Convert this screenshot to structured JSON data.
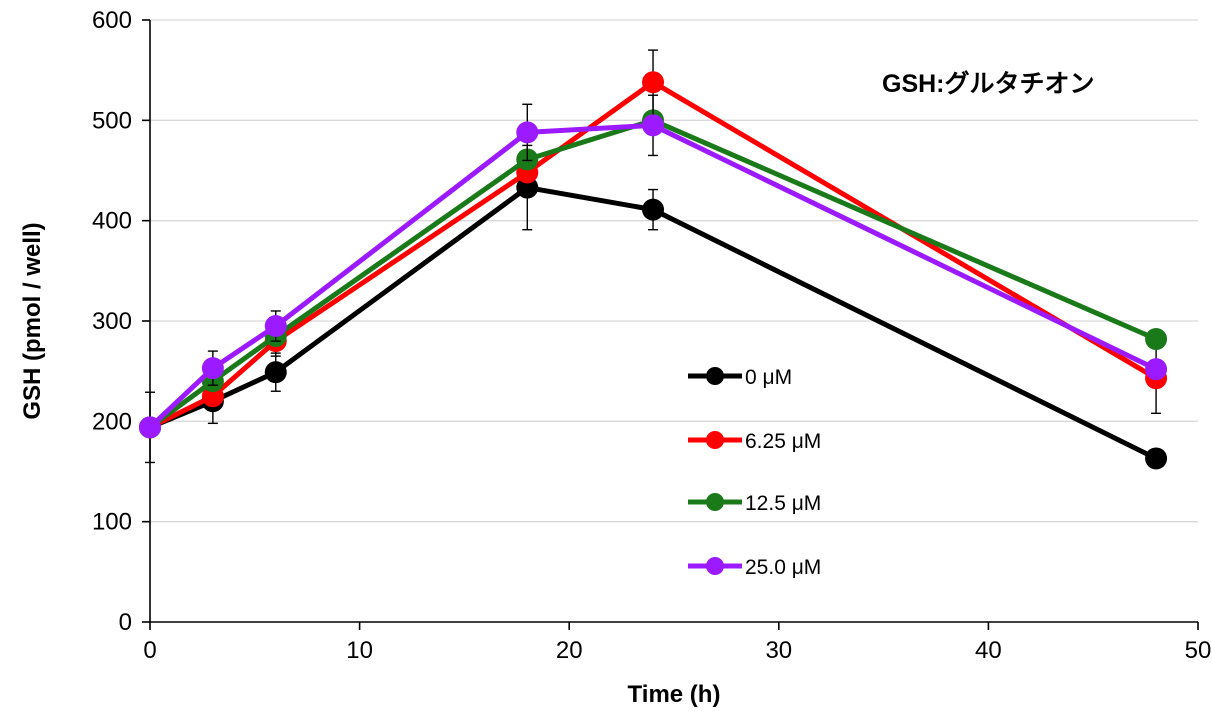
{
  "chart_data": {
    "type": "line",
    "title": "",
    "annotation": "GSH:グルタチオン",
    "xlabel": "Time (h)",
    "ylabel": "GSH (pmol / well)",
    "xlim": [
      0,
      50
    ],
    "ylim": [
      0,
      600
    ],
    "xticks": [
      0,
      10,
      20,
      30,
      40,
      50
    ],
    "yticks": [
      0,
      100,
      200,
      300,
      400,
      500,
      600
    ],
    "grid": "horizontal",
    "legend_position": "center-right",
    "x": [
      0,
      3,
      6,
      18,
      24,
      48
    ],
    "series": [
      {
        "name": "0 μM",
        "color": "#000000",
        "values": [
          194,
          220,
          249,
          433,
          411,
          163
        ],
        "error": [
          35,
          22,
          19,
          42,
          20,
          0
        ]
      },
      {
        "name": "6.25 μM",
        "color": "#ff0000",
        "values": [
          194,
          225,
          280,
          448,
          538,
          243
        ],
        "error": [
          0,
          0,
          15,
          0,
          32,
          35
        ]
      },
      {
        "name": "12.5 μM",
        "color": "#1a7a1a",
        "values": [
          194,
          240,
          285,
          461,
          500,
          282
        ],
        "error": [
          0,
          0,
          0,
          0,
          0,
          0
        ]
      },
      {
        "name": "25.0 μM",
        "color": "#9b1aff",
        "values": [
          194,
          253,
          295,
          488,
          495,
          252
        ],
        "error": [
          0,
          17,
          15,
          28,
          30,
          0
        ]
      }
    ]
  }
}
